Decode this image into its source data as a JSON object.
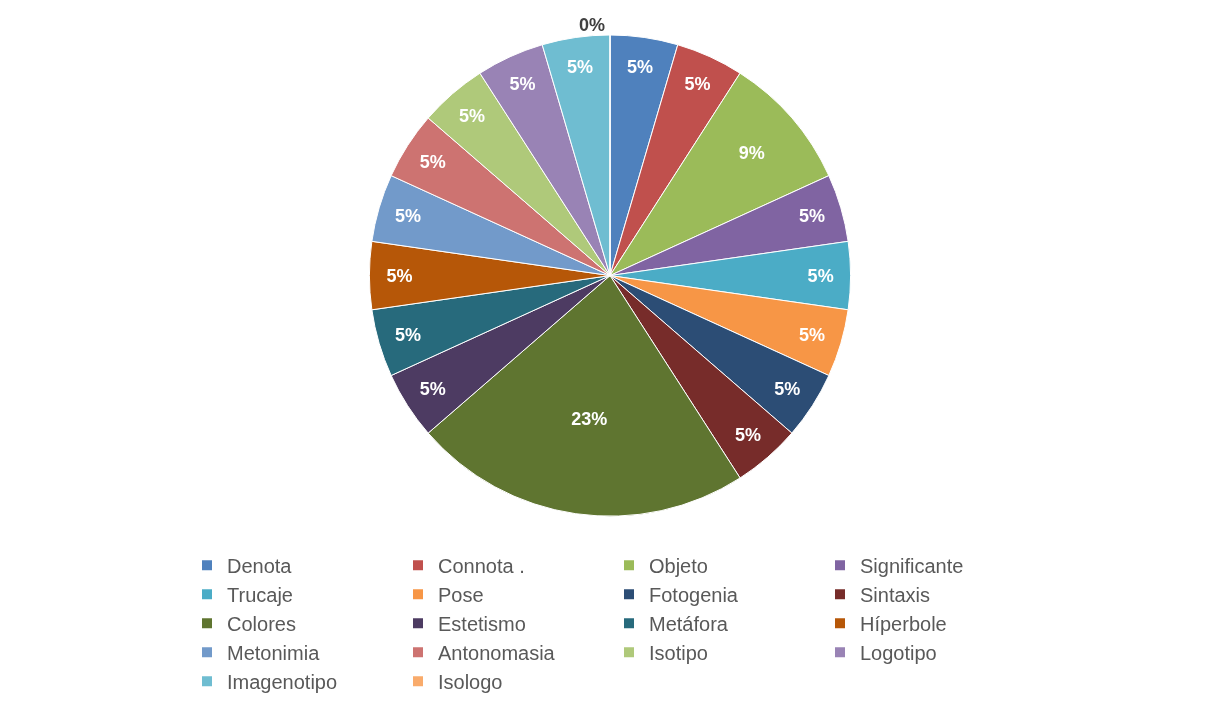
{
  "chart_data": {
    "type": "pie",
    "categories": [
      "Denota",
      "Connota .",
      "Objeto",
      "Significante",
      "Trucaje",
      "Pose",
      "Fotogenia",
      "Sintaxis",
      "Colores",
      "Estetismo",
      "Metáfora",
      "Híperbole",
      "Metonimia",
      "Antonomasia",
      "Isotipo",
      "Logotipo",
      "Imagenotipo",
      "Isologo"
    ],
    "values": [
      4.545,
      4.545,
      9.09,
      4.545,
      4.545,
      4.545,
      4.545,
      4.545,
      22.73,
      4.545,
      4.545,
      4.545,
      4.545,
      4.545,
      4.545,
      4.545,
      4.545,
      0
    ],
    "value_labels": [
      "5%",
      "5%",
      "9%",
      "5%",
      "5%",
      "5%",
      "5%",
      "5%",
      "23%",
      "5%",
      "5%",
      "5%",
      "5%",
      "5%",
      "5%",
      "5%",
      "5%",
      "0%"
    ],
    "colors": [
      "#4f81bd",
      "#c0504d",
      "#9bbb59",
      "#8064a2",
      "#4bacc6",
      "#f79646",
      "#2c4d75",
      "#772c2a",
      "#5f7530",
      "#4d3b62",
      "#276a7c",
      "#b65708",
      "#729aca",
      "#cd7371",
      "#afc97a",
      "#9983b5",
      "#6fbdd1",
      "#f9ab6b"
    ],
    "legend": "bottom"
  }
}
